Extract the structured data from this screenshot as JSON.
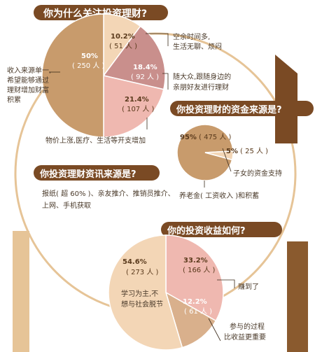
{
  "colors": {
    "dark": "#c89b6c",
    "mid": "#d9b08c",
    "light": "#f3d6b6",
    "pinkDark": "#c98f8c",
    "pinkLight": "#efb8b0",
    "header": "#7a4a24",
    "arc": "#e8c9a0"
  },
  "chart_data": [
    {
      "type": "pie",
      "title": "你为什么关注投资理财?",
      "slices": [
        {
          "pct": "10.2%",
          "count": "( 51 人 )",
          "value": 10.2,
          "label": "空余时间多,\n生活无聊、烦闷"
        },
        {
          "pct": "18.4%",
          "count": "( 92 人 )",
          "value": 18.4,
          "label": "随大众,跟随身边的\n亲朋好友进行理财"
        },
        {
          "pct": "21.4%",
          "count": "( 107 人 )",
          "value": 21.4,
          "label": "物价上涨,医疗、生活等开支增加"
        },
        {
          "pct": "50%",
          "count": "( 250 人 )",
          "value": 50,
          "label": "收入来源单一,\n希望能够通过\n理财增加财富\n积累"
        }
      ]
    },
    {
      "type": "pie",
      "title": "你投资理财的资金来源是?",
      "slices": [
        {
          "pct": "95%",
          "count": "( 475 人 )",
          "value": 95,
          "label": "养老金( 工资收入 )和积蓄"
        },
        {
          "pct": "5%",
          "count": "( 25 人 )",
          "value": 5,
          "label": "子女的资金支持"
        }
      ]
    },
    {
      "type": "text",
      "title": "你投资理财资讯来源是?",
      "body": "报纸( 超 60% )、亲友推介、推销员推介、\n上网、手机获取"
    },
    {
      "type": "pie",
      "title": "你的投资收益如何?",
      "slices": [
        {
          "pct": "33.2%",
          "count": "( 166 人 )",
          "value": 33.2,
          "label": "赚到了"
        },
        {
          "pct": "12.2%",
          "count": "( 61 人 )",
          "value": 12.2,
          "label": "参与的过程\n比收益更重要"
        },
        {
          "pct": "54.6%",
          "count": "( 273 人 )",
          "value": 54.6,
          "label": "学习为主,不\n想与社会脱节"
        }
      ]
    }
  ]
}
